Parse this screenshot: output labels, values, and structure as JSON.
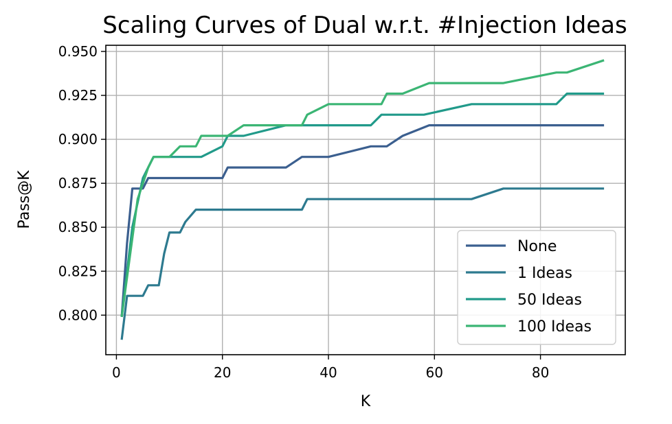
{
  "chart_data": {
    "type": "line",
    "title": "Scaling Curves of Dual w.r.t. #Injection Ideas",
    "xlabel": "K",
    "ylabel": "Pass@K",
    "xlim": [
      -2,
      96
    ],
    "ylim": [
      0.7775,
      0.9535
    ],
    "xticks": [
      0,
      20,
      40,
      60,
      80
    ],
    "yticks": [
      0.8,
      0.825,
      0.85,
      0.875,
      0.9,
      0.925,
      0.95
    ],
    "ytick_labels": [
      "0.800",
      "0.825",
      "0.850",
      "0.875",
      "0.900",
      "0.925",
      "0.950"
    ],
    "grid": true,
    "legend_position": "lower right",
    "series": [
      {
        "name": "None",
        "color": "#3b5f8f",
        "points": [
          [
            1,
            0.799
          ],
          [
            2,
            0.841
          ],
          [
            3,
            0.872
          ],
          [
            5,
            0.872
          ],
          [
            6,
            0.878
          ],
          [
            20,
            0.878
          ],
          [
            21,
            0.884
          ],
          [
            32,
            0.884
          ],
          [
            35,
            0.89
          ],
          [
            40,
            0.89
          ],
          [
            48,
            0.896
          ],
          [
            51,
            0.896
          ],
          [
            54,
            0.902
          ],
          [
            59,
            0.908
          ],
          [
            92,
            0.908
          ]
        ]
      },
      {
        "name": "1 Ideas",
        "color": "#2d7a8f",
        "points": [
          [
            1,
            0.786
          ],
          [
            2,
            0.811
          ],
          [
            5,
            0.811
          ],
          [
            6,
            0.817
          ],
          [
            8,
            0.817
          ],
          [
            9,
            0.835
          ],
          [
            10,
            0.847
          ],
          [
            12,
            0.847
          ],
          [
            13,
            0.853
          ],
          [
            15,
            0.86
          ],
          [
            35,
            0.86
          ],
          [
            36,
            0.866
          ],
          [
            67,
            0.866
          ],
          [
            73,
            0.872
          ],
          [
            92,
            0.872
          ]
        ]
      },
      {
        "name": "50 Ideas",
        "color": "#219a8a",
        "points": [
          [
            1,
            0.799
          ],
          [
            3,
            0.85
          ],
          [
            5,
            0.878
          ],
          [
            7,
            0.89
          ],
          [
            16,
            0.89
          ],
          [
            20,
            0.896
          ],
          [
            21,
            0.902
          ],
          [
            24,
            0.902
          ],
          [
            32,
            0.908
          ],
          [
            48,
            0.908
          ],
          [
            50,
            0.914
          ],
          [
            58,
            0.914
          ],
          [
            67,
            0.92
          ],
          [
            83,
            0.92
          ],
          [
            85,
            0.926
          ],
          [
            92,
            0.926
          ]
        ]
      },
      {
        "name": "100 Ideas",
        "color": "#3bb574",
        "points": [
          [
            1,
            0.799
          ],
          [
            4,
            0.866
          ],
          [
            6,
            0.884
          ],
          [
            7,
            0.89
          ],
          [
            10,
            0.89
          ],
          [
            12,
            0.896
          ],
          [
            15,
            0.896
          ],
          [
            16,
            0.902
          ],
          [
            21,
            0.902
          ],
          [
            24,
            0.908
          ],
          [
            35,
            0.908
          ],
          [
            36,
            0.914
          ],
          [
            40,
            0.92
          ],
          [
            50,
            0.92
          ],
          [
            51,
            0.926
          ],
          [
            54,
            0.926
          ],
          [
            59,
            0.932
          ],
          [
            73,
            0.932
          ],
          [
            83,
            0.938
          ],
          [
            85,
            0.938
          ],
          [
            92,
            0.945
          ]
        ]
      }
    ]
  }
}
